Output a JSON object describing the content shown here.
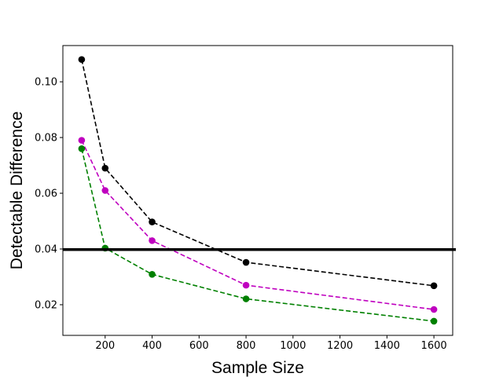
{
  "chart_data": {
    "type": "line",
    "title": "",
    "xlabel": "Sample Size",
    "ylabel": "Detectable Difference",
    "xlim": [
      20,
      1680
    ],
    "ylim": [
      0.009,
      0.113
    ],
    "xticks": [
      200,
      400,
      600,
      800,
      1000,
      1200,
      1400,
      1600
    ],
    "xtick_labels": [
      "200",
      "400",
      "600",
      "800",
      "1000",
      "1200",
      "1400",
      "1600"
    ],
    "yticks": [
      0.02,
      0.04,
      0.06,
      0.08,
      0.1
    ],
    "ytick_labels": [
      "0.02",
      "0.04",
      "0.06",
      "0.08",
      "0.10"
    ],
    "grid": false,
    "x": [
      100,
      200,
      400,
      800,
      1600
    ],
    "series": [
      {
        "color": "#000000",
        "values": [
          0.108,
          0.069,
          0.0497,
          0.0352,
          0.0268
        ]
      },
      {
        "color": "#bf00bf",
        "values": [
          0.079,
          0.061,
          0.043,
          0.027,
          0.0183
        ]
      },
      {
        "color": "#008000",
        "values": [
          0.076,
          0.0403,
          0.0309,
          0.0221,
          0.0141
        ]
      }
    ],
    "reference_line": {
      "y": 0.0398,
      "color": "#000000"
    }
  }
}
